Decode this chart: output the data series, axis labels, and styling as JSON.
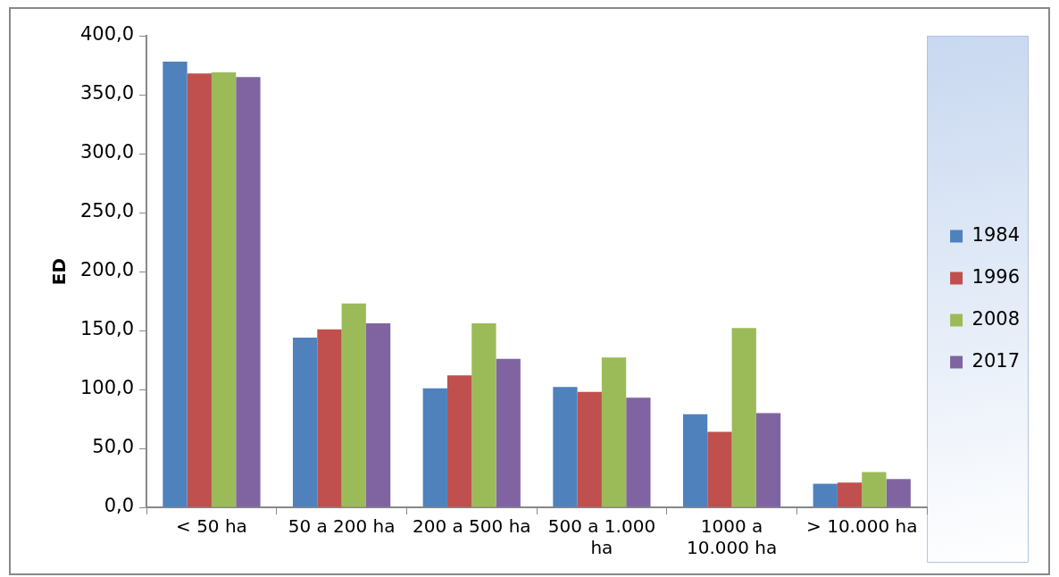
{
  "chart_data": {
    "type": "bar",
    "ylabel": "ED",
    "categories": [
      "< 50 ha",
      "50 a 200 ha",
      "200 a 500 ha",
      "500 a 1.000 ha",
      "1000 a 10.000 ha",
      "> 10.000 ha"
    ],
    "series": [
      {
        "name": "1984",
        "color": "#4f81bd",
        "values": [
          378,
          144,
          101,
          102,
          79,
          20
        ]
      },
      {
        "name": "1996",
        "color": "#c0504d",
        "values": [
          368,
          151,
          112,
          98,
          64,
          21
        ]
      },
      {
        "name": "2008",
        "color": "#9bbb59",
        "values": [
          369,
          173,
          156,
          127,
          152,
          30
        ]
      },
      {
        "name": "2017",
        "color": "#8064a2",
        "values": [
          365,
          156,
          126,
          93,
          80,
          24
        ]
      }
    ],
    "ylim": [
      0,
      400
    ],
    "yticks": [
      {
        "value": 0,
        "label": "0,0"
      },
      {
        "value": 50,
        "label": "50,0"
      },
      {
        "value": 100,
        "label": "100,0"
      },
      {
        "value": 150,
        "label": "150,0"
      },
      {
        "value": 200,
        "label": "200,0"
      },
      {
        "value": 250,
        "label": "250,0"
      },
      {
        "value": 300,
        "label": "300,0"
      },
      {
        "value": 350,
        "label": "350,0"
      },
      {
        "value": 400,
        "label": "400,0"
      }
    ],
    "grid": false,
    "legend": "right"
  }
}
